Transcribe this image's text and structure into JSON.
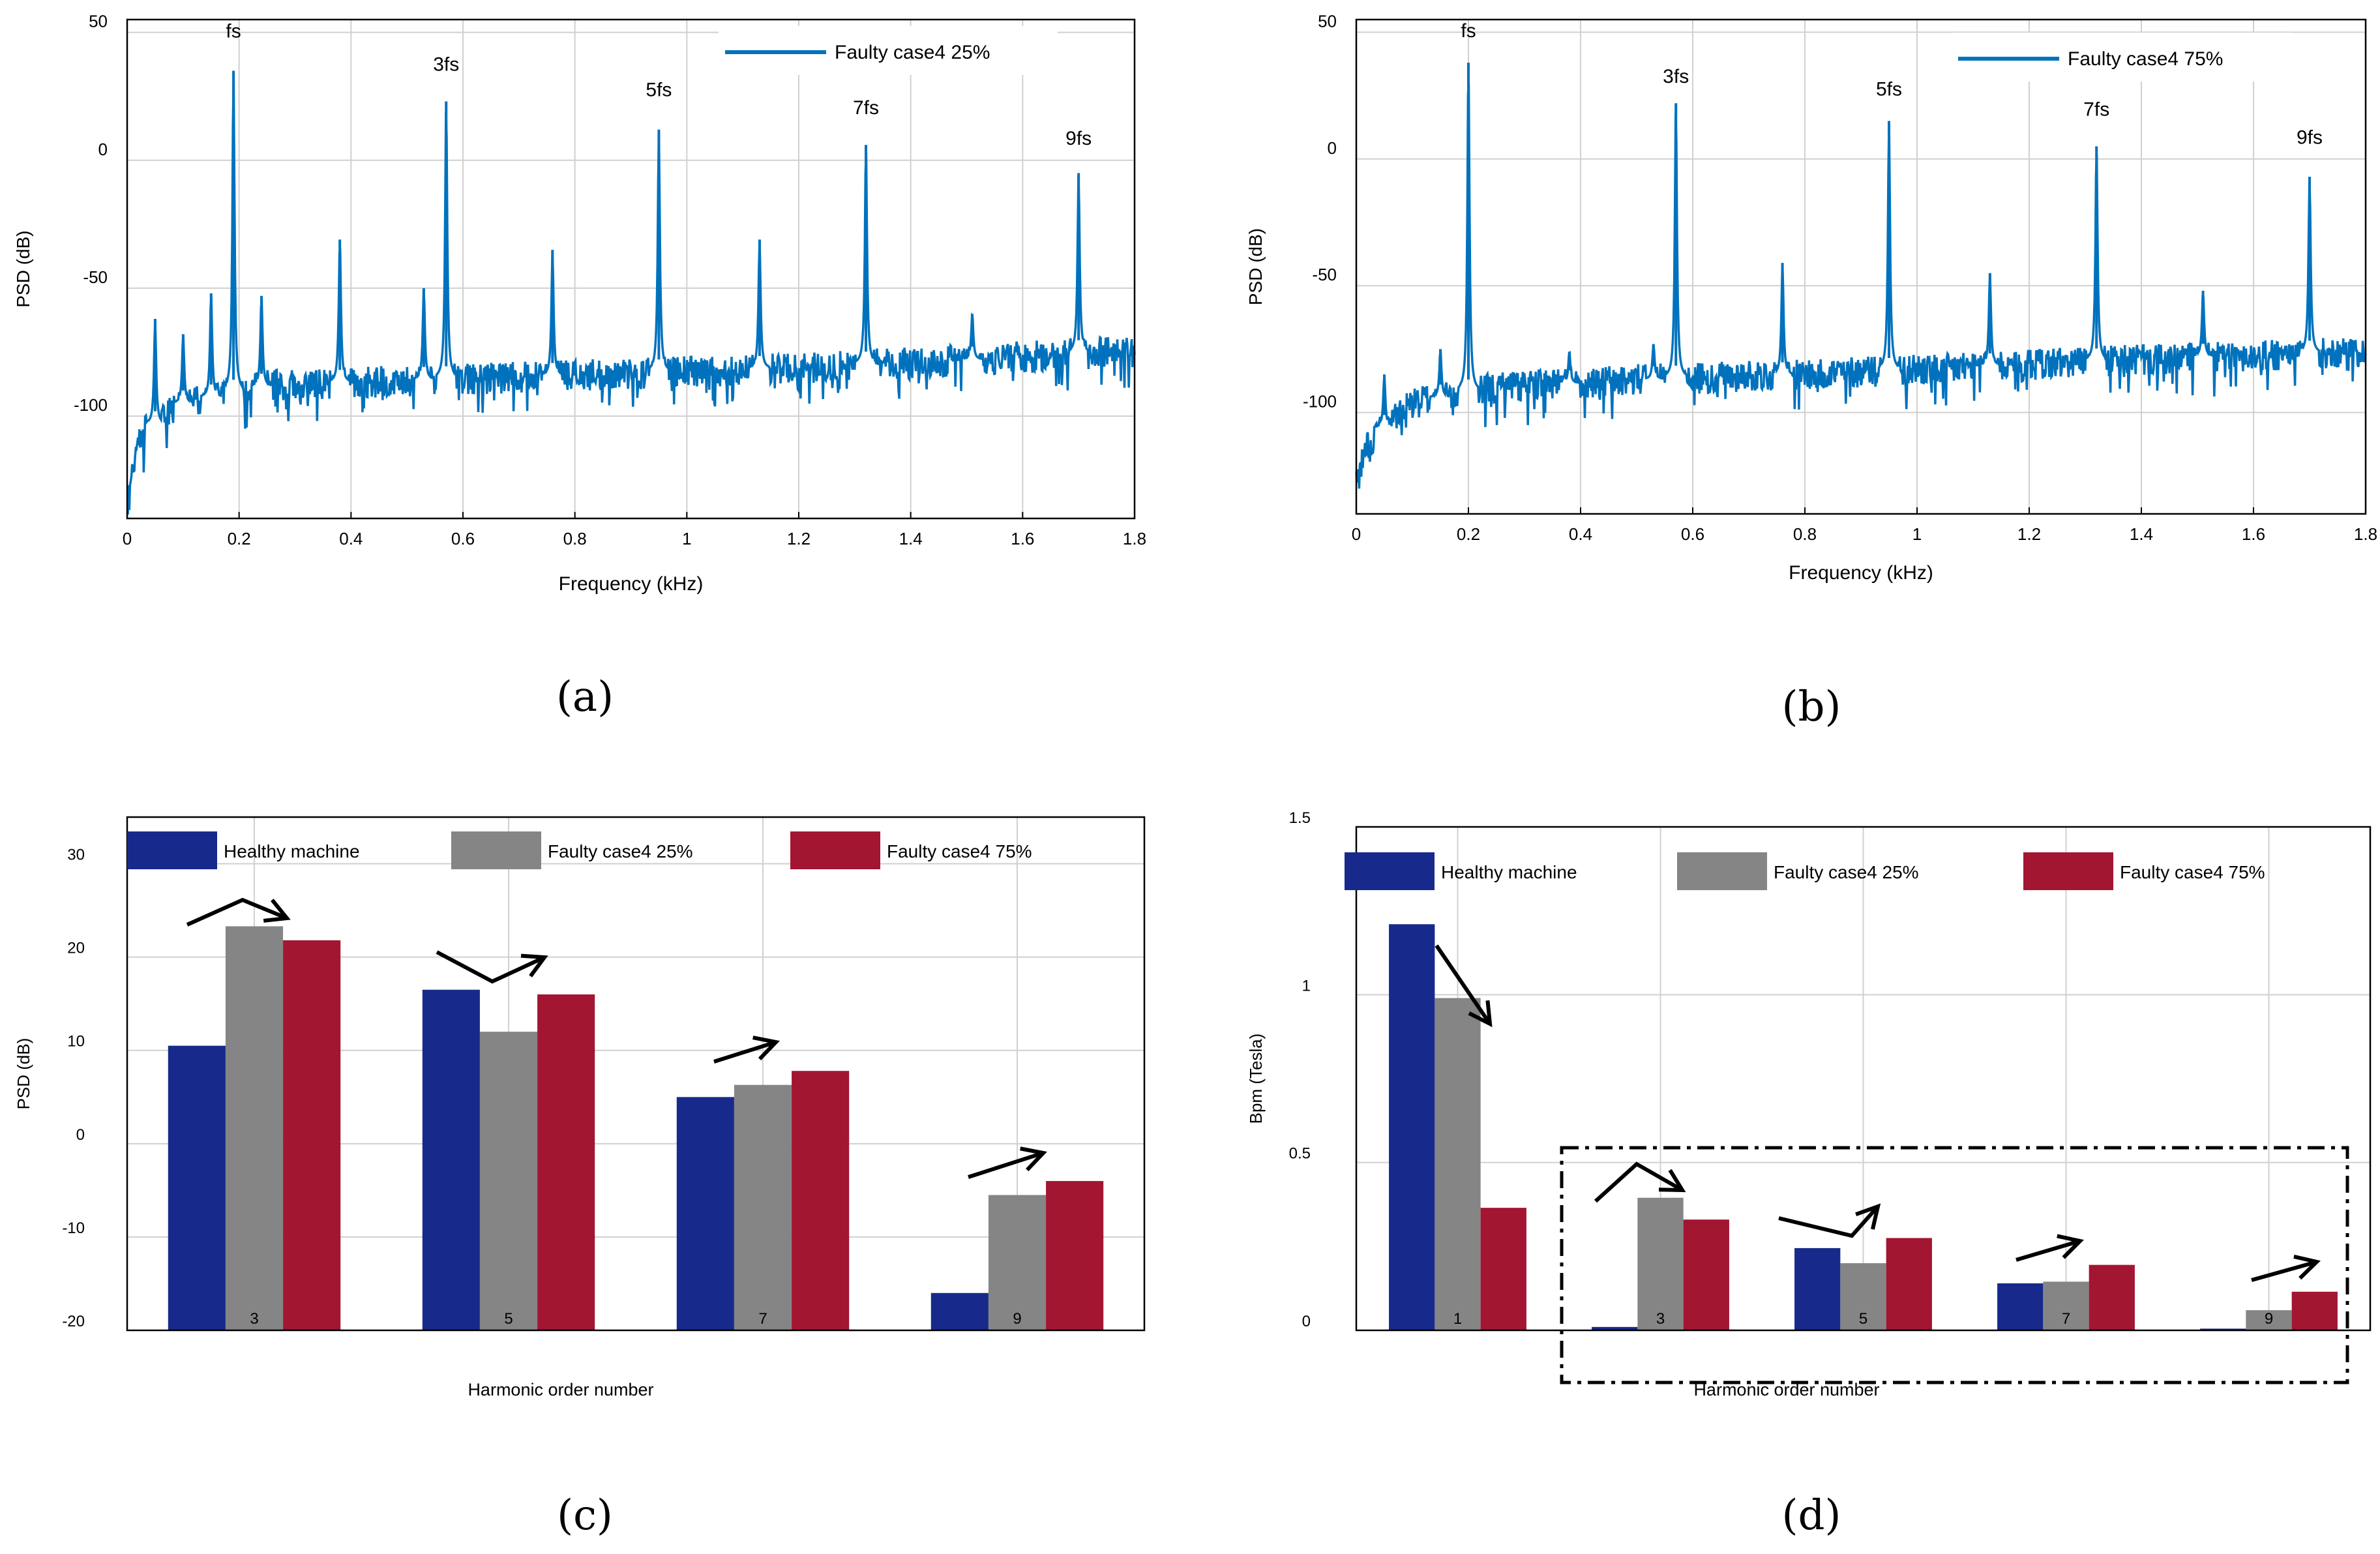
{
  "captions": [
    "(a)",
    "(b)",
    "(c)",
    "(d)"
  ],
  "colors": {
    "line": "#0072bd",
    "healthy": "#172a8c",
    "faulty25": "#858585",
    "faulty75": "#a21632",
    "grid": "#d0d0d0"
  },
  "chart_data": [
    {
      "id": "a",
      "type": "line",
      "xlabel": "Frequency (kHz)",
      "ylabel": "PSD (dB)",
      "xlim": [
        0,
        1.8
      ],
      "ylim": [
        -140,
        55
      ],
      "xticks": [
        0,
        0.2,
        0.4,
        0.6,
        0.8,
        1,
        1.2,
        1.4,
        1.6,
        1.8
      ],
      "yticks": [
        50,
        0,
        -50,
        -100
      ],
      "grid": true,
      "legend_position": "top-right",
      "series": [
        {
          "name": "Faulty case4 25%"
        }
      ],
      "noise_floor": [
        [
          0,
          -135
        ],
        [
          0.02,
          -108
        ],
        [
          0.1,
          -95
        ],
        [
          0.25,
          -88
        ],
        [
          0.5,
          -86
        ],
        [
          0.8,
          -84
        ],
        [
          1.2,
          -81
        ],
        [
          1.5,
          -78
        ],
        [
          1.8,
          -74
        ]
      ],
      "peaks": [
        {
          "x": 0.05,
          "y": -62
        },
        {
          "x": 0.1,
          "y": -68
        },
        {
          "x": 0.15,
          "y": -52
        },
        {
          "x": 0.19,
          "y": 35
        },
        {
          "x": 0.24,
          "y": -53
        },
        {
          "x": 0.38,
          "y": -31
        },
        {
          "x": 0.53,
          "y": -50
        },
        {
          "x": 0.57,
          "y": 23
        },
        {
          "x": 0.76,
          "y": -35
        },
        {
          "x": 0.95,
          "y": 12
        },
        {
          "x": 1.13,
          "y": -31
        },
        {
          "x": 1.32,
          "y": 6
        },
        {
          "x": 1.51,
          "y": -60
        },
        {
          "x": 1.7,
          "y": -5
        }
      ],
      "annotations": [
        {
          "text": "fs",
          "x": 0.19,
          "y": 48
        },
        {
          "text": "3fs",
          "x": 0.57,
          "y": 35
        },
        {
          "text": "5fs",
          "x": 0.95,
          "y": 25
        },
        {
          "text": "7fs",
          "x": 1.32,
          "y": 18
        },
        {
          "text": "9fs",
          "x": 1.7,
          "y": 6
        }
      ]
    },
    {
      "id": "b",
      "type": "line",
      "xlabel": "Frequency (kHz)",
      "ylabel": "PSD (dB)",
      "xlim": [
        0,
        1.8
      ],
      "ylim": [
        -140,
        55
      ],
      "xticks": [
        0,
        0.2,
        0.4,
        0.6,
        0.8,
        1,
        1.2,
        1.4,
        1.6,
        1.8
      ],
      "yticks": [
        50,
        0,
        -50,
        -100
      ],
      "grid": true,
      "legend_position": "top-right",
      "series": [
        {
          "name": "Faulty case4 75%"
        }
      ],
      "noise_floor": [
        [
          0,
          -128
        ],
        [
          0.02,
          -112
        ],
        [
          0.1,
          -96
        ],
        [
          0.25,
          -90
        ],
        [
          0.5,
          -87
        ],
        [
          0.8,
          -85
        ],
        [
          1.2,
          -81
        ],
        [
          1.5,
          -78
        ],
        [
          1.8,
          -76
        ]
      ],
      "peaks": [
        {
          "x": 0.05,
          "y": -85
        },
        {
          "x": 0.15,
          "y": -75
        },
        {
          "x": 0.2,
          "y": 38
        },
        {
          "x": 0.38,
          "y": -76
        },
        {
          "x": 0.53,
          "y": -73
        },
        {
          "x": 0.57,
          "y": 22
        },
        {
          "x": 0.76,
          "y": -41
        },
        {
          "x": 0.95,
          "y": 15
        },
        {
          "x": 1.13,
          "y": -45
        },
        {
          "x": 1.32,
          "y": 5
        },
        {
          "x": 1.51,
          "y": -52
        },
        {
          "x": 1.7,
          "y": -7
        }
      ],
      "annotations": [
        {
          "text": "fs",
          "x": 0.2,
          "y": 48
        },
        {
          "text": "3fs",
          "x": 0.57,
          "y": 30
        },
        {
          "text": "5fs",
          "x": 0.95,
          "y": 25
        },
        {
          "text": "7fs",
          "x": 1.32,
          "y": 17
        },
        {
          "text": "9fs",
          "x": 1.7,
          "y": 6
        }
      ]
    },
    {
      "id": "c",
      "type": "bar",
      "xlabel": "Harmonic order number",
      "ylabel": "PSD (dB)",
      "ylim": [
        -20,
        35
      ],
      "yticks": [
        30,
        20,
        10,
        0,
        -10,
        -20
      ],
      "grid": true,
      "legend_position": "top",
      "categories": [
        "3",
        "5",
        "7",
        "9"
      ],
      "series": [
        {
          "name": "Healthy machine",
          "values": [
            10.5,
            16.5,
            5,
            -16
          ]
        },
        {
          "name": "Faulty case4 25%",
          "values": [
            23.3,
            12,
            6.3,
            -5.5
          ]
        },
        {
          "name": "Faulty case4 75%",
          "values": [
            21.8,
            16,
            7.8,
            -4
          ]
        }
      ]
    },
    {
      "id": "d",
      "type": "bar",
      "xlabel": "Harmonic order number",
      "ylabel": "Bpm (Tesla)",
      "ylim": [
        0,
        1.5
      ],
      "yticks": [
        1.5,
        1,
        0.5,
        0
      ],
      "grid": true,
      "legend_position": "top",
      "categories": [
        "1",
        "3",
        "5",
        "7",
        "9"
      ],
      "series": [
        {
          "name": "Healthy machine",
          "values": [
            1.21,
            0.01,
            0.245,
            0.14,
            0.005
          ]
        },
        {
          "name": "Faulty case4 25%",
          "values": [
            0.99,
            0.395,
            0.2,
            0.145,
            0.06
          ]
        },
        {
          "name": "Faulty case4 75%",
          "values": [
            0.365,
            0.33,
            0.275,
            0.195,
            0.115
          ]
        }
      ]
    }
  ]
}
